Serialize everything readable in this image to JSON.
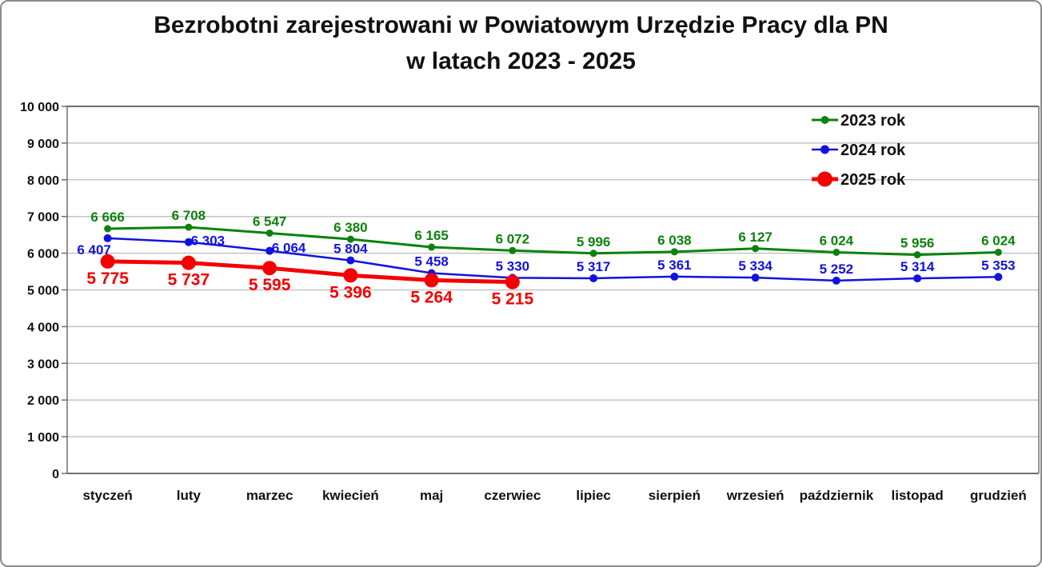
{
  "chart_data": {
    "type": "line",
    "title": "Bezrobotni zarejestrowani w Powiatowym Urzędzie Pracy dla PN w latach 2023 - 2025",
    "title_lines": [
      "Bezrobotni zarejestrowani w Powiatowym Urzędzie Pracy dla PN",
      "w latach 2023 - 2025"
    ],
    "categories": [
      "styczeń",
      "luty",
      "marzec",
      "kwiecień",
      "maj",
      "czerwiec",
      "lipiec",
      "sierpień",
      "wrzesień",
      "październik",
      "listopad",
      "grudzień"
    ],
    "series": [
      {
        "name": "2023 rok",
        "color": "#0c820c",
        "values": [
          6666,
          6708,
          6547,
          6380,
          6165,
          6072,
          5996,
          6038,
          6127,
          6024,
          5956,
          6024
        ],
        "labels": [
          "6 666",
          "6 708",
          "6 547",
          "6 380",
          "6 165",
          "6 072",
          "5 996",
          "6 038",
          "6 127",
          "6 024",
          "5 956",
          "6 024"
        ],
        "label_position": "above",
        "label_font_size": 17,
        "line_width": 3,
        "marker_radius": 4.5
      },
      {
        "name": "2024 rok",
        "color": "#1212e0",
        "values": [
          6407,
          6303,
          6064,
          5804,
          5458,
          5330,
          5317,
          5361,
          5334,
          5252,
          5314,
          5353
        ],
        "labels": [
          "6 407",
          "6 303",
          "6 064",
          "5 804",
          "5 458",
          "5 330",
          "5 317",
          "5 361",
          "5 334",
          "5 252",
          "5 314",
          "5 353"
        ],
        "label_position": "above",
        "label_offsets": {
          "0": [
            -17,
            20
          ],
          "1": [
            24,
            4
          ],
          "2": [
            24,
            2
          ]
        },
        "label_font_size": 17,
        "line_width": 2.5,
        "marker_radius": 5
      },
      {
        "name": "2025 rok",
        "color": "#f40000",
        "values": [
          5775,
          5737,
          5595,
          5396,
          5264,
          5215
        ],
        "labels": [
          "5 775",
          "5 737",
          "5 595",
          "5 396",
          "5 264",
          "5 215"
        ],
        "label_position": "below",
        "label_font_size": 21,
        "line_width": 5,
        "marker_radius": 9
      }
    ],
    "y_axis": {
      "min": 0,
      "max": 10000,
      "step": 1000,
      "tick_labels": [
        "10 000",
        "9 000",
        "8 000",
        "7 000",
        "6 000",
        "5 000",
        "4 000",
        "3 000",
        "2 000",
        "1 000",
        "0"
      ]
    },
    "x_axis": {
      "label": ""
    },
    "legend": {
      "position": "top-right"
    },
    "grid": true,
    "colors": {
      "gridline": "#c4c4c4",
      "axis": "#6e6e6e",
      "text": "#111111",
      "frame_border": "#8a8a8a"
    }
  }
}
